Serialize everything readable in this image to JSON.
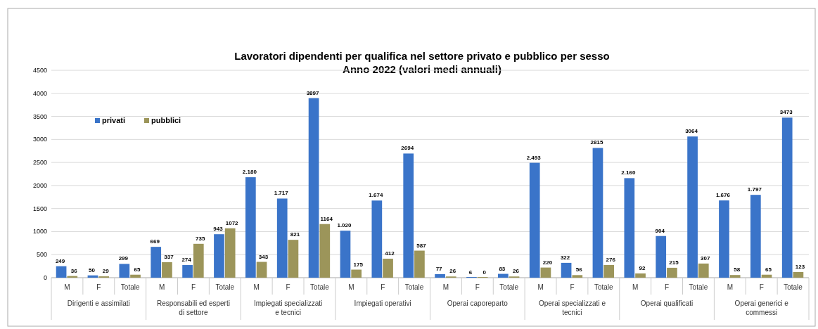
{
  "chart_data": {
    "type": "bar",
    "title": "Lavoratori dipendenti per qualifica nel settore privato e pubblico per sesso",
    "subtitle": "Anno 2022 (valori medi annuali)",
    "categories": [
      "M",
      "F",
      "Totale",
      "M",
      "F",
      "Totale",
      "M",
      "F",
      "Totale",
      "M",
      "F",
      "Totale",
      "M",
      "F",
      "Totale",
      "M",
      "F",
      "Totale",
      "M",
      "F",
      "Totale",
      "M",
      "F",
      "Totale"
    ],
    "annotations": [
      "Dirigenti e assimilati",
      "Responsabili ed esperti di settore",
      "Impiegati specializzati e tecnici",
      "Impiegati operativi",
      "Operai caporeparto",
      "Operai specializzati e tecnici",
      "Operai qualificati",
      "Operai generici e commessi"
    ],
    "series": [
      {
        "name": "privati",
        "color": "#3a74c9",
        "values": [
          249,
          50,
          299,
          669,
          274,
          943,
          2180,
          1717,
          3897,
          1020,
          1674,
          2694,
          77,
          6,
          83,
          2493,
          322,
          2815,
          2160,
          904,
          3064,
          1676,
          1797,
          3473
        ],
        "value_labels": [
          "249",
          "50",
          "299",
          "669",
          "274",
          "943",
          "2.180",
          "1.717",
          "3897",
          "1.020",
          "1.674",
          "2694",
          "77",
          "6",
          "83",
          "2.493",
          "322",
          "2815",
          "2.160",
          "904",
          "3064",
          "1.676",
          "1.797",
          "3473"
        ]
      },
      {
        "name": "pubblici",
        "color": "#9c955a",
        "values": [
          36,
          29,
          65,
          337,
          735,
          1072,
          343,
          821,
          1164,
          175,
          412,
          587,
          26,
          0,
          26,
          220,
          56,
          276,
          92,
          215,
          307,
          58,
          65,
          123
        ],
        "value_labels": [
          "36",
          "29",
          "65",
          "337",
          "735",
          "1072",
          "343",
          "821",
          "1164",
          "175",
          "412",
          "587",
          "26",
          "0",
          "26",
          "220",
          "56",
          "276",
          "92",
          "215",
          "307",
          "58",
          "65",
          "123"
        ]
      }
    ],
    "ylim": [
      0,
      4500
    ],
    "yticks": [
      0,
      500,
      1000,
      1500,
      2000,
      2500,
      3000,
      3500,
      4000,
      4500
    ],
    "grid": "y",
    "legend": "top left"
  }
}
